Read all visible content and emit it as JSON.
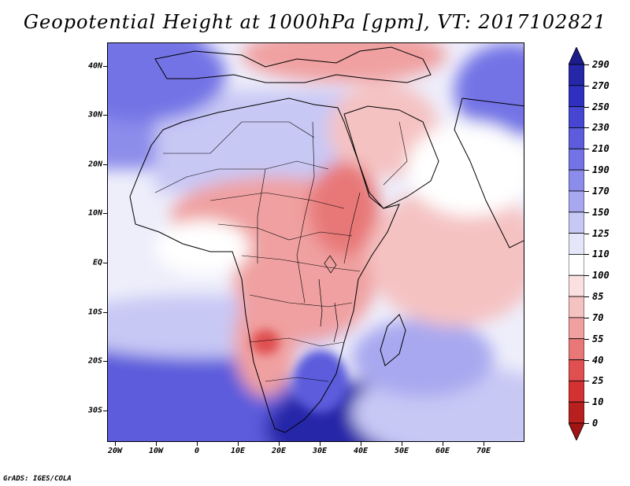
{
  "title": "Geopotential Height at 1000hPa [gpm], VT: 2017102821",
  "footer": "GrADS: IGES/COLA",
  "map": {
    "region": "Africa and Middle East",
    "lat_labels": [
      "40N",
      "30N",
      "20N",
      "10N",
      "EQ",
      "10S",
      "20S",
      "30S"
    ],
    "lon_labels": [
      "20W",
      "10W",
      "0",
      "10E",
      "20E",
      "30E",
      "40E",
      "50E",
      "60E",
      "70E"
    ]
  },
  "colorbar": {
    "labels": [
      "290",
      "270",
      "250",
      "230",
      "210",
      "190",
      "170",
      "150",
      "125",
      "110",
      "100",
      "85",
      "70",
      "55",
      "40",
      "25",
      "10",
      "0"
    ],
    "colors": [
      "#1c1c8c",
      "#2626a8",
      "#3030c0",
      "#4646d2",
      "#5c5cdc",
      "#7373e6",
      "#8c8ceb",
      "#a8a8f0",
      "#c8c8f5",
      "#e6e6fa",
      "#ffffff",
      "#fae0e0",
      "#f5c2c2",
      "#f0a0a0",
      "#e87878",
      "#e05050",
      "#d23232",
      "#b82020",
      "#a01414"
    ]
  }
}
